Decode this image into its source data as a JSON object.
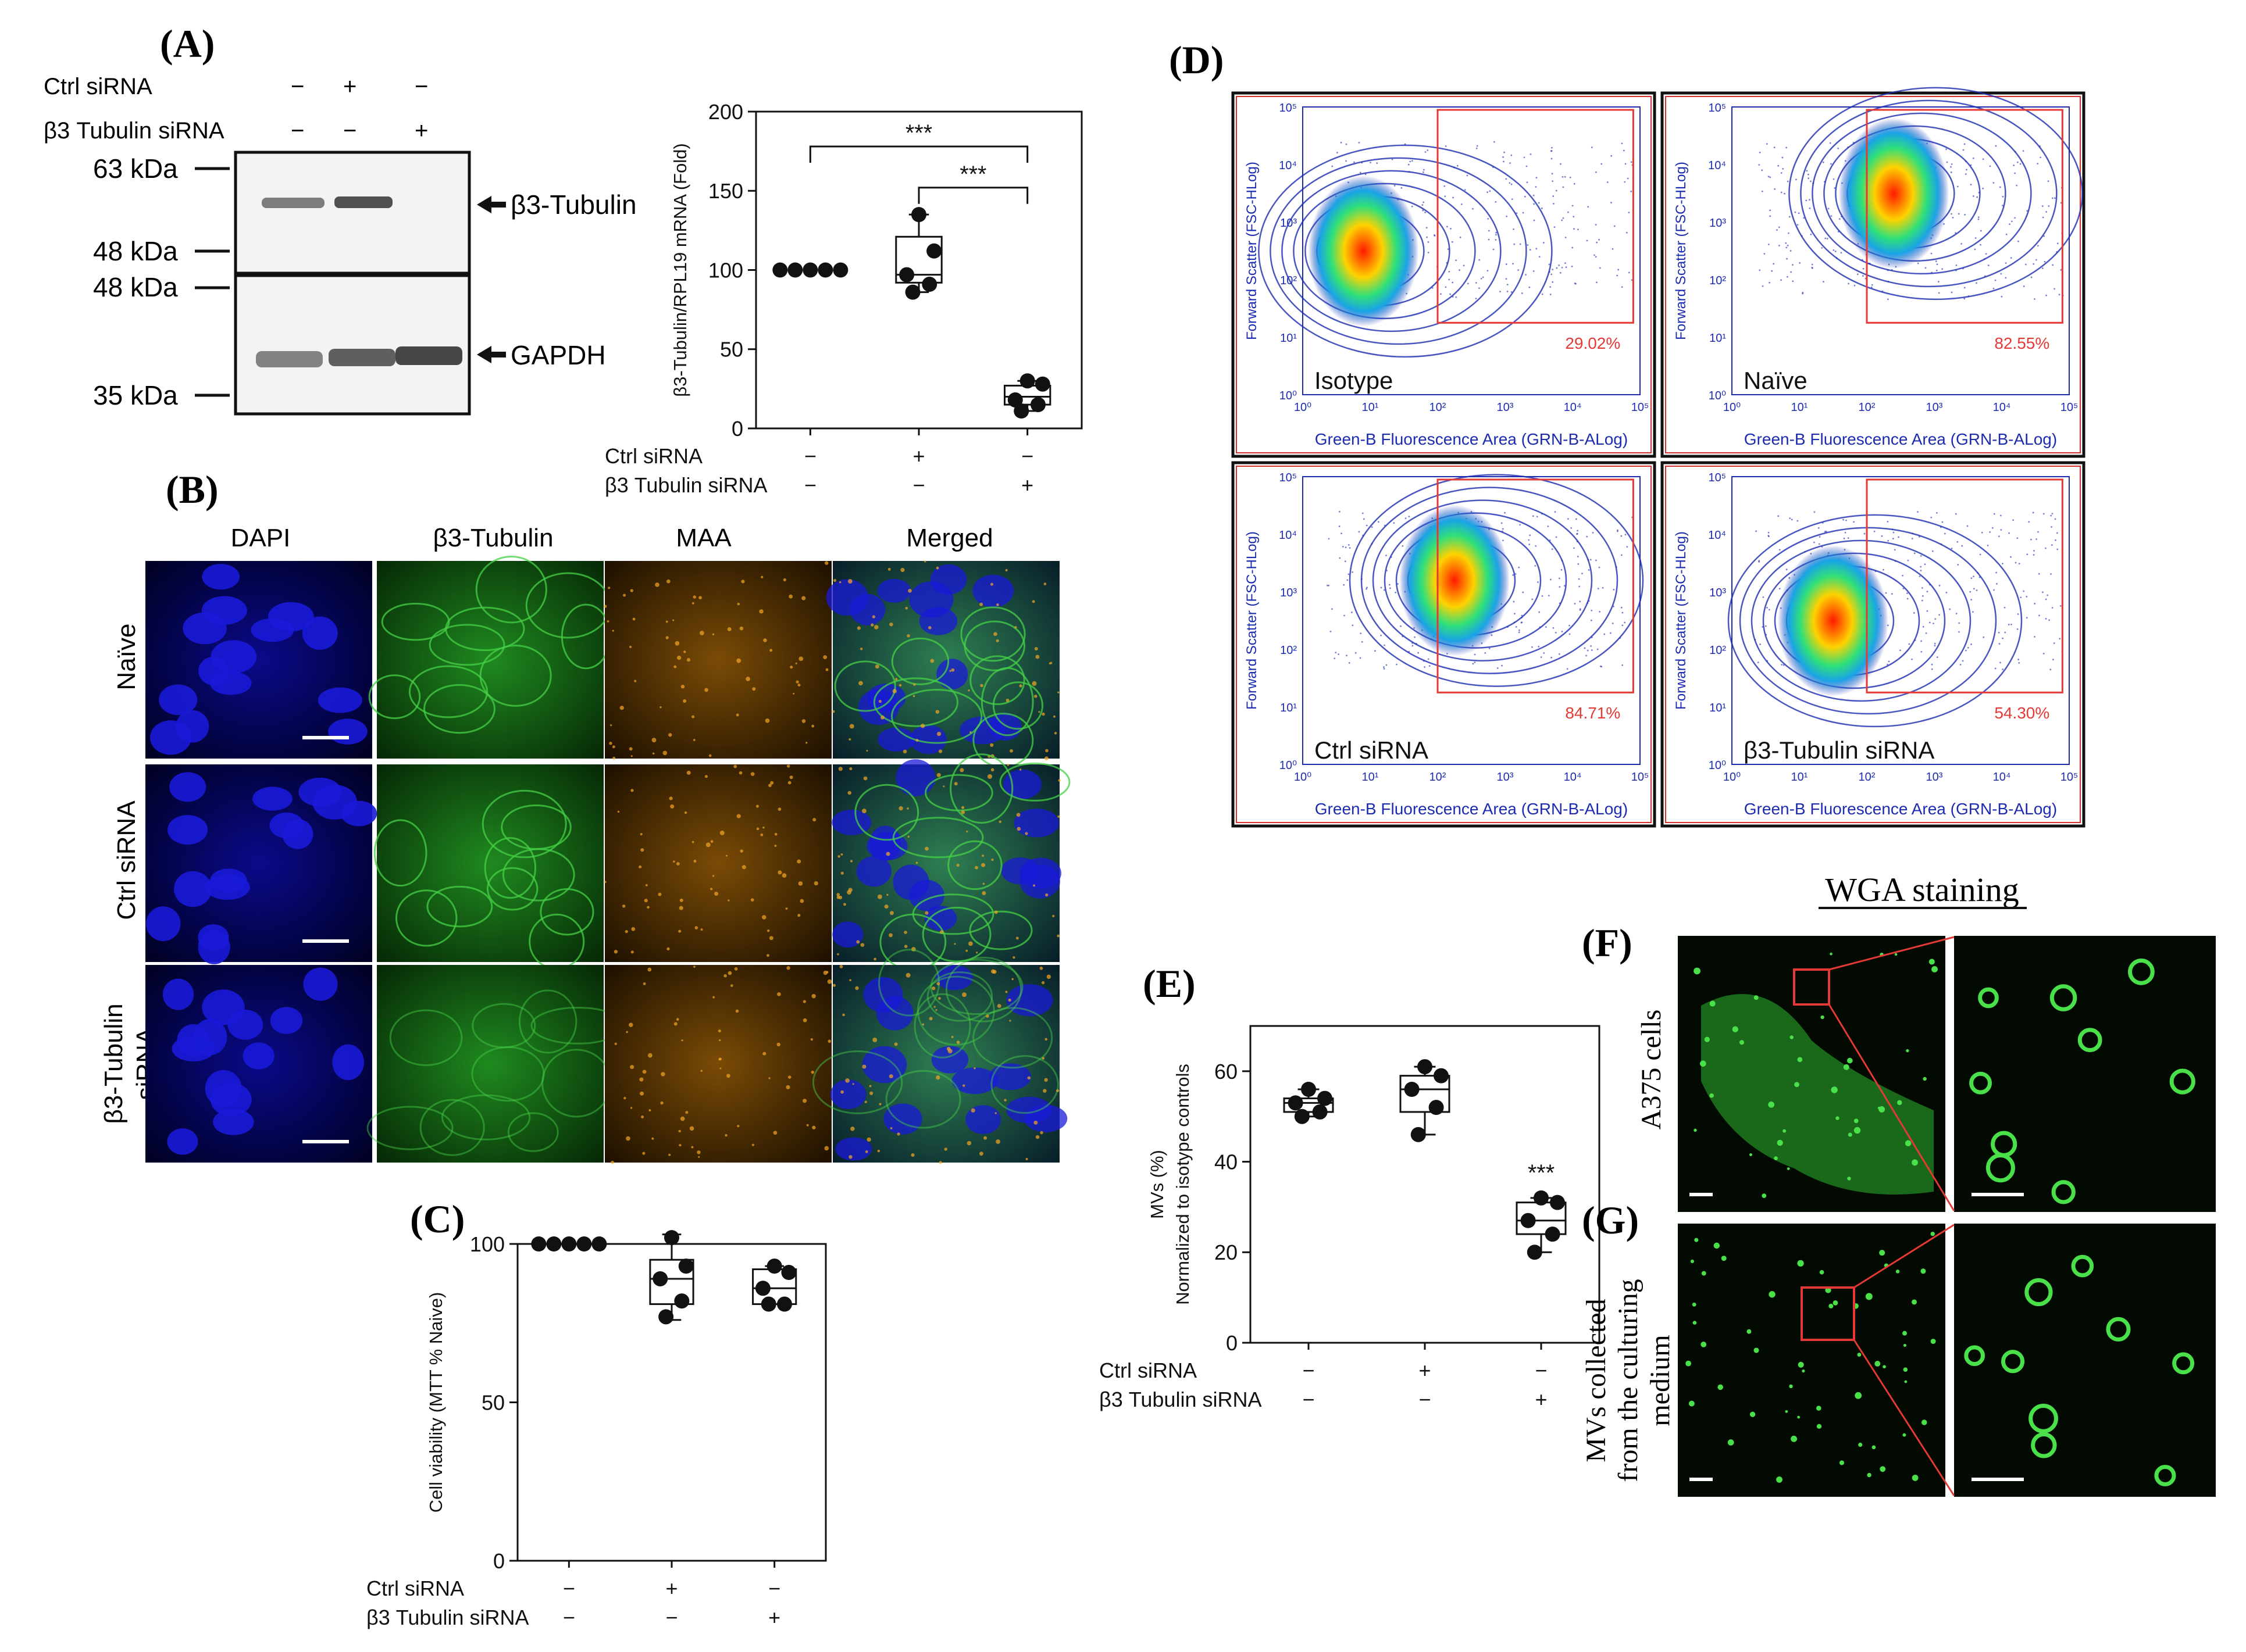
{
  "panel_labels": {
    "A": "(A)",
    "B": "(B)",
    "C": "(C)",
    "D": "(D)",
    "E": "(E)",
    "F": "(F)",
    "G": "(G)"
  },
  "western": {
    "row_labels": [
      "Ctrl siRNA",
      "β3 Tubulin siRNA"
    ],
    "ctrl_signs": [
      "−",
      "+",
      "−"
    ],
    "b3_signs": [
      "−",
      "−",
      "+"
    ],
    "markers": [
      "63 kDa",
      "48 kDa",
      "48 kDa",
      "35 kDa"
    ],
    "bands": [
      "β3-Tubulin",
      "GAPDH"
    ]
  },
  "microscopy": {
    "columns": [
      "DAPI",
      "β3-Tubulin",
      "MAA",
      "Merged"
    ],
    "rows": [
      "Naïve",
      "Ctrl siRNA",
      "β3-Tubulin",
      "siRNA"
    ]
  },
  "flow": {
    "ylabel": "Forward Scatter (FSC-HLog)",
    "xlabel": "Green-B Fluorescence Area (GRN-B-ALog)",
    "ticks": [
      "10⁰",
      "10¹",
      "10²",
      "10³",
      "10⁴",
      "10⁵"
    ],
    "panels": [
      {
        "name": "Isotype",
        "pct": "29.02%"
      },
      {
        "name": "Naïve",
        "pct": "82.55%"
      },
      {
        "name": "Ctrl siRNA",
        "pct": "84.71%"
      },
      {
        "name": "β3-Tubulin siRNA",
        "pct": "54.30%"
      }
    ]
  },
  "wga": {
    "title": "WGA staining",
    "row_f": "A375 cells",
    "row_g_1": "MVs collected",
    "row_g_2": "from the culturing",
    "row_g_3": "medium"
  },
  "chart_data": [
    {
      "type": "box",
      "panel": "A",
      "ylabel": "β3-Tubulin/RPL19 mRNA (Fold)",
      "ylim": [
        0,
        200
      ],
      "yticks": [
        0,
        50,
        100,
        150,
        200
      ],
      "row_labels": [
        "Ctrl siRNA",
        "β3 Tubulin siRNA"
      ],
      "ctrl_signs": [
        "−",
        "+",
        "−"
      ],
      "b3_signs": [
        "−",
        "−",
        "+"
      ],
      "groups": [
        {
          "points": [
            100,
            100,
            100,
            100,
            100
          ]
        },
        {
          "points": [
            135,
            112,
            97,
            91,
            86
          ],
          "box": [
            86,
            92,
            97,
            121,
            135
          ]
        },
        {
          "points": [
            30,
            28,
            18,
            15,
            11
          ],
          "box": [
            11,
            15,
            20,
            27,
            30
          ]
        }
      ],
      "significance": [
        {
          "from": 0,
          "to": 2,
          "label": "***"
        },
        {
          "from": 1,
          "to": 2,
          "label": "***"
        }
      ]
    },
    {
      "type": "box",
      "panel": "C",
      "ylabel": "Cell viability (MTT % Naive)",
      "ylim": [
        0,
        100
      ],
      "yticks": [
        0,
        50,
        100
      ],
      "row_labels": [
        "Ctrl siRNA",
        "β3 Tubulin siRNA"
      ],
      "ctrl_signs": [
        "−",
        "+",
        "−"
      ],
      "b3_signs": [
        "−",
        "−",
        "+"
      ],
      "groups": [
        {
          "points": [
            100,
            100,
            100,
            100,
            100
          ]
        },
        {
          "points": [
            102,
            93,
            89,
            82,
            77
          ],
          "box": [
            76,
            81,
            89,
            95,
            103
          ]
        },
        {
          "points": [
            93,
            91,
            86,
            81,
            81
          ],
          "box": [
            81,
            81,
            86,
            92,
            93
          ]
        }
      ]
    },
    {
      "type": "box",
      "panel": "E",
      "ylabel": "MVs (%)",
      "ylabel2": "Normalized to isotype controls",
      "ylim": [
        0,
        70
      ],
      "yticks": [
        0,
        20,
        40,
        60
      ],
      "row_labels": [
        "Ctrl siRNA",
        "β3 Tubulin siRNA"
      ],
      "ctrl_signs": [
        "−",
        "+",
        "−"
      ],
      "b3_signs": [
        "−",
        "−",
        "+"
      ],
      "groups": [
        {
          "points": [
            56,
            54,
            53,
            51,
            50
          ],
          "box": [
            50,
            51,
            53,
            54,
            56
          ]
        },
        {
          "points": [
            61,
            59,
            56,
            52,
            46
          ],
          "box": [
            46,
            51,
            56,
            59,
            61
          ]
        },
        {
          "points": [
            32,
            31,
            27,
            24,
            20
          ],
          "box": [
            20,
            24,
            27,
            31,
            32
          ]
        }
      ],
      "significance": [
        {
          "group": 2,
          "label": "***"
        }
      ]
    }
  ]
}
